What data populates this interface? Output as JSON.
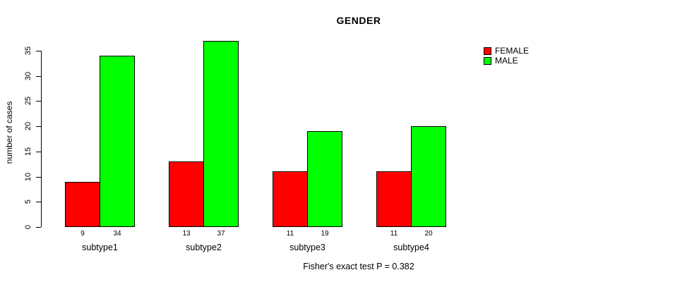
{
  "chart_data": {
    "type": "bar",
    "title": "GENDER",
    "ylabel": "number of cases",
    "xlabel": "",
    "categories": [
      "subtype1",
      "subtype2",
      "subtype3",
      "subtype4"
    ],
    "series": [
      {
        "name": "FEMALE",
        "color": "#ff0000",
        "values": [
          9,
          13,
          11,
          11
        ]
      },
      {
        "name": "MALE",
        "color": "#00ff00",
        "values": [
          34,
          37,
          19,
          20
        ]
      }
    ],
    "bar_value_labels": [
      [
        "9",
        "34"
      ],
      [
        "13",
        "37"
      ],
      [
        "11",
        "19"
      ],
      [
        "11",
        "20"
      ]
    ],
    "yticks": [
      0,
      5,
      10,
      15,
      20,
      25,
      30,
      35
    ],
    "ylim": [
      0,
      37
    ],
    "grid": false,
    "legend_position": "right-outside",
    "annotation": "Fisher's exact test P = 0.382",
    "colors": {
      "bar_border": "#000000",
      "text": "#000000",
      "background": "#ffffff"
    }
  }
}
